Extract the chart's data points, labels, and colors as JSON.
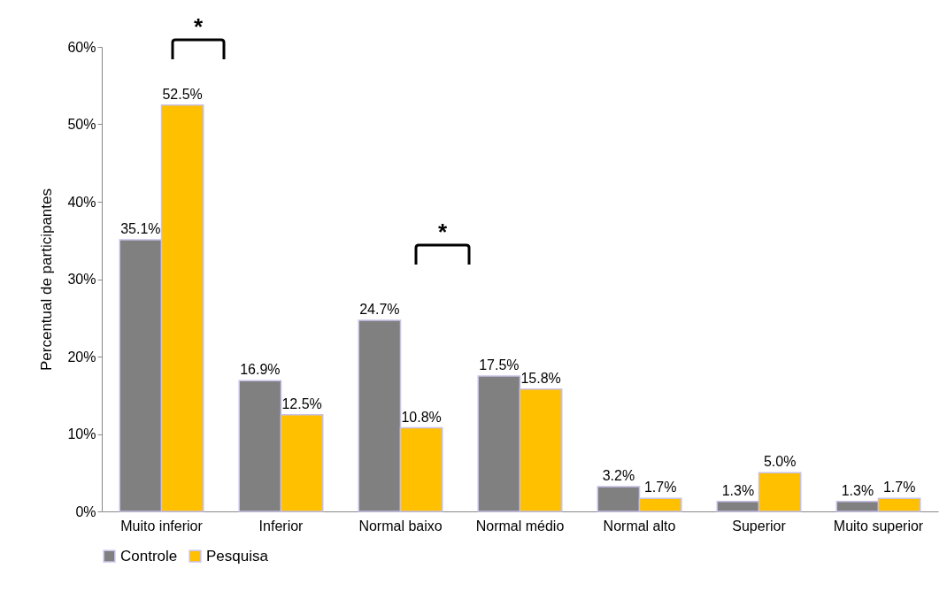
{
  "chart_data": {
    "type": "bar",
    "ylabel": "Percentual de participantes",
    "categories": [
      "Muito inferior",
      "Inferior",
      "Normal baixo",
      "Normal médio",
      "Normal alto",
      "Superior",
      "Muito superior"
    ],
    "series": [
      {
        "name": "Controle",
        "color": "#808080",
        "values": [
          35.1,
          16.9,
          24.7,
          17.5,
          3.2,
          1.3,
          1.3
        ],
        "value_labels": [
          "35.1%",
          "16.9%",
          "24.7%",
          "17.5%",
          "3.2%",
          "1.3%",
          "1.3%"
        ]
      },
      {
        "name": "Pesquisa",
        "color": "#ffc000",
        "values": [
          52.5,
          12.5,
          10.8,
          15.8,
          1.7,
          5.0,
          1.7
        ],
        "value_labels": [
          "52.5%",
          "12.5%",
          "10.8%",
          "15.8%",
          "1.7%",
          "5.0%",
          "1.7%"
        ]
      }
    ],
    "ylim": [
      0,
      60
    ],
    "yticks": [
      {
        "value": 0,
        "label": "0%"
      },
      {
        "value": 10,
        "label": "10%"
      },
      {
        "value": 20,
        "label": "20%"
      },
      {
        "value": 30,
        "label": "30%"
      },
      {
        "value": 40,
        "label": "40%"
      },
      {
        "value": 50,
        "label": "50%"
      },
      {
        "value": 60,
        "label": "60%"
      }
    ],
    "annotations": [
      "*",
      "*"
    ],
    "legend": "bottom",
    "grid": false
  }
}
